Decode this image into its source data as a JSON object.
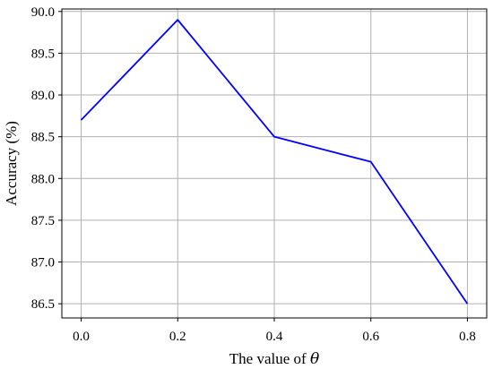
{
  "chart_data": {
    "type": "line",
    "title": "",
    "xlabel": {
      "prefix": "The value of ",
      "symbol": "θ"
    },
    "ylabel": "Accuracy (%)",
    "x": [
      0.0,
      0.2,
      0.4,
      0.6,
      0.8
    ],
    "series": [
      {
        "values": [
          88.7,
          89.9,
          88.5,
          88.2,
          86.5
        ],
        "color": "#0000ff"
      }
    ],
    "xlim": [
      -0.04,
      0.84
    ],
    "ylim": [
      86.33,
      90.03
    ],
    "xticks": [
      0.0,
      0.2,
      0.4,
      0.6,
      0.8
    ],
    "xtick_labels": [
      "0.0",
      "0.2",
      "0.4",
      "0.6",
      "0.8"
    ],
    "yticks": [
      86.5,
      87.0,
      87.5,
      88.0,
      88.5,
      89.0,
      89.5,
      90.0
    ],
    "ytick_labels": [
      "86.5",
      "87.0",
      "87.5",
      "88.0",
      "88.5",
      "89.0",
      "89.5",
      "90.0"
    ],
    "grid": true,
    "legend": "none"
  }
}
